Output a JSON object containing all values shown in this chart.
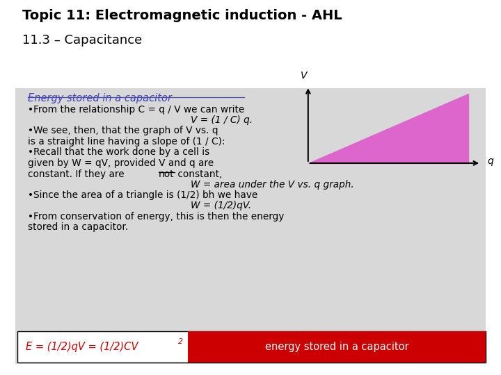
{
  "title_line1": "Topic 11: Electromagnetic induction - AHL",
  "title_line2": "11.3 – Capacitance",
  "bg_color": "#ffffff",
  "content_bg": "#d8d8d8",
  "section_title": "Energy stored in a capacitor",
  "section_title_color": "#4444bb",
  "formula_label": "energy stored in a capacitor",
  "formula_bg": "#cc0000",
  "formula_text_color": "#cc0000",
  "formula_label_color": "#ffffff",
  "triangle_color": "#dd66cc",
  "arrow_color": "#000000"
}
